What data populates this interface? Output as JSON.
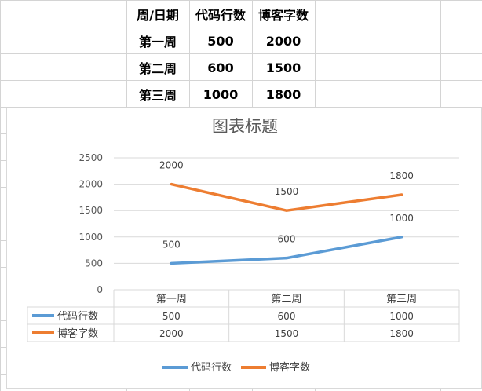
{
  "sheet": {
    "header": [
      "周/日期",
      "代码行数",
      "博客字数"
    ],
    "rows": [
      [
        "第一周",
        "500",
        "2000"
      ],
      [
        "第二周",
        "600",
        "1500"
      ],
      [
        "第三周",
        "1000",
        "1800"
      ]
    ]
  },
  "chart_data": {
    "type": "line",
    "title": "图表标题",
    "categories": [
      "第一周",
      "第二周",
      "第三周"
    ],
    "series": [
      {
        "name": "代码行数",
        "values": [
          500,
          600,
          1000
        ],
        "color": "#5b9bd5"
      },
      {
        "name": "博客字数",
        "values": [
          2000,
          1500,
          1800
        ],
        "color": "#ed7d31"
      }
    ],
    "ylim": [
      0,
      2500
    ],
    "yticks": [
      0,
      500,
      1000,
      1500,
      2000,
      2500
    ],
    "grid": true,
    "data_labels": true,
    "data_table": true,
    "legend": "bottom"
  }
}
